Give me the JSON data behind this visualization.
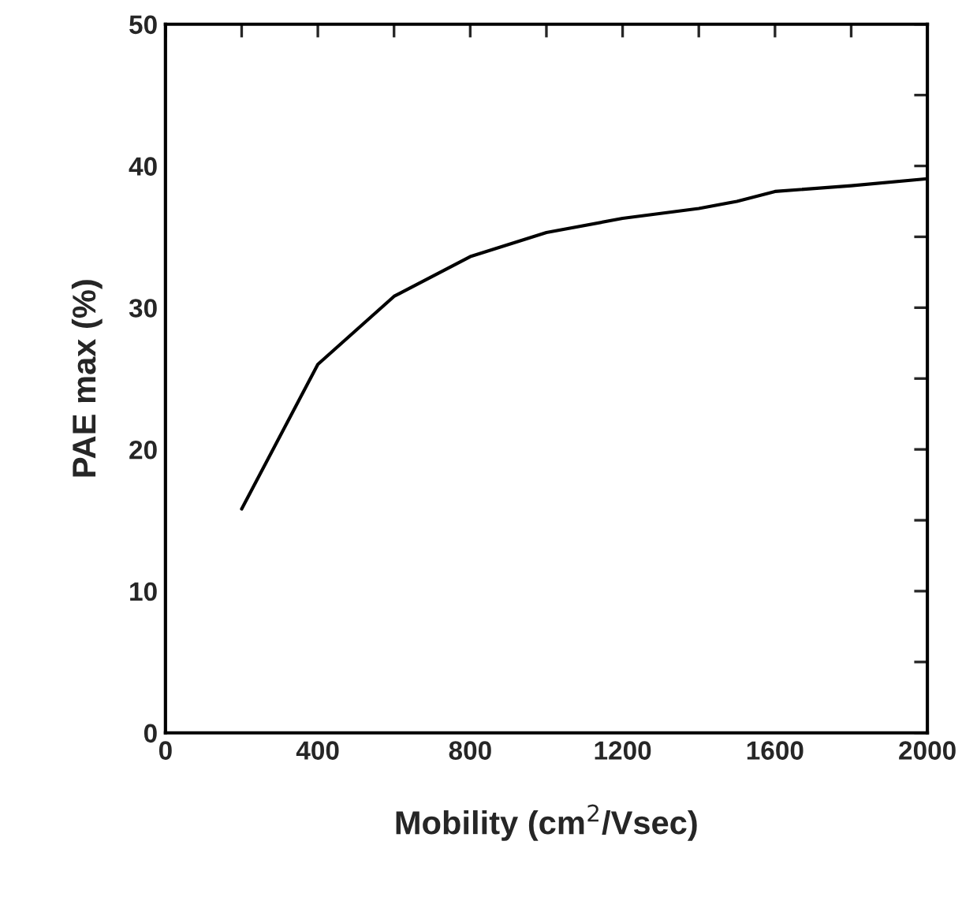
{
  "chart_data": {
    "type": "line",
    "xlabel": "Mobility (cm$^{2}$/Vsec)",
    "ylabel": "PAE max (%)",
    "x": [
      200,
      400,
      600,
      800,
      1000,
      1200,
      1400,
      1500,
      1600,
      1800,
      2000
    ],
    "series": [
      {
        "color": "#000000",
        "values": [
          15.8,
          26.0,
          30.8,
          33.6,
          35.3,
          36.3,
          37.0,
          37.5,
          38.2,
          38.6,
          39.1
        ]
      }
    ],
    "xlim": [
      0,
      2000
    ],
    "ylim": [
      0,
      50
    ],
    "xticks": [
      0,
      {
        "value": 200,
        "label": null
      },
      400,
      {
        "value": 600,
        "label": null
      },
      800,
      {
        "value": 1000,
        "label": null
      },
      1200,
      {
        "value": 1400,
        "label": null
      },
      1600,
      {
        "value": 1800,
        "label": null
      },
      2000
    ],
    "yticks": [
      0,
      {
        "value": 5,
        "label": null
      },
      10,
      {
        "value": 15,
        "label": null
      },
      20,
      {
        "value": 25,
        "label": null
      },
      30,
      {
        "value": 35,
        "label": null
      },
      40,
      {
        "value": 45,
        "label": null
      },
      50
    ],
    "grid": false,
    "marker": "none",
    "line_style": "solid"
  }
}
